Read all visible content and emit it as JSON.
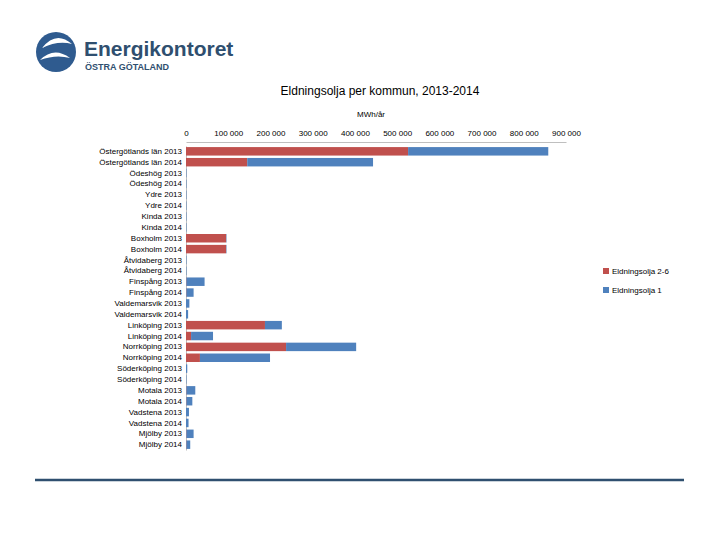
{
  "chart_data": {
    "type": "bar",
    "orientation": "horizontal",
    "stacked": true,
    "title": "Eldningsolja per kommun, 2013-2014",
    "xlabel": "MWh/år",
    "annotations": [
      "Energikontoret",
      "ÖSTRA GÖTALAND"
    ],
    "legend": "right",
    "grid": false,
    "categories": [
      "Östergötlands län 2013",
      "Östergötlands län 2014",
      "Ödeshög 2013",
      "Ödeshög 2014",
      "Ydre 2013",
      "Ydre 2014",
      "Kinda 2013",
      "Kinda 2014",
      "Boxholm 2013",
      "Boxholm 2014",
      "Åtvidaberg 2013",
      "Åtvidaberg 2014",
      "Finspång 2013",
      "Finspång 2014",
      "Valdemarsvik 2013",
      "Valdemarsvik 2014",
      "Linköping 2013",
      "Linköping 2014",
      "Norrköping 2013",
      "Norrköping 2014",
      "Söderköping 2013",
      "Söderköping 2014",
      "Motala 2013",
      "Motala 2014",
      "Vadstena 2013",
      "Vadstena 2014",
      "Mjölby 2013",
      "Mjölby 2014"
    ],
    "series": [
      {
        "name": "Eldningsolja 2-6",
        "color": "#c0504d",
        "values": [
          526000,
          145000,
          0,
          0,
          0,
          0,
          0,
          0,
          95000,
          95000,
          0,
          0,
          1000,
          1000,
          0,
          0,
          187000,
          12000,
          237000,
          33000,
          0,
          0,
          1000,
          1000,
          0,
          0,
          1000,
          1000
        ]
      },
      {
        "name": "Eldningsolja 1",
        "color": "#4f81bd",
        "values": [
          332000,
          298000,
          1000,
          1000,
          1000,
          1000,
          1000,
          1000,
          1000,
          1000,
          1000,
          1000,
          43000,
          17000,
          8000,
          5000,
          40000,
          52000,
          166000,
          166000,
          3000,
          1000,
          21000,
          14000,
          7000,
          6000,
          17000,
          9000
        ]
      }
    ],
    "xlim": [
      0,
      900000
    ],
    "xticks": [
      0,
      {
        "value": 100000,
        "label": "100 000"
      },
      {
        "value": 200000,
        "label": "200 000"
      },
      {
        "value": 300000,
        "label": "300 000"
      },
      {
        "value": 400000,
        "label": "400 000"
      },
      {
        "value": 500000,
        "label": "500 000"
      },
      {
        "value": 600000,
        "label": "600 000"
      },
      {
        "value": 700000,
        "label": "700 000"
      },
      {
        "value": 800000,
        "label": "800 000"
      },
      {
        "value": 900000,
        "label": "900 000"
      }
    ]
  }
}
